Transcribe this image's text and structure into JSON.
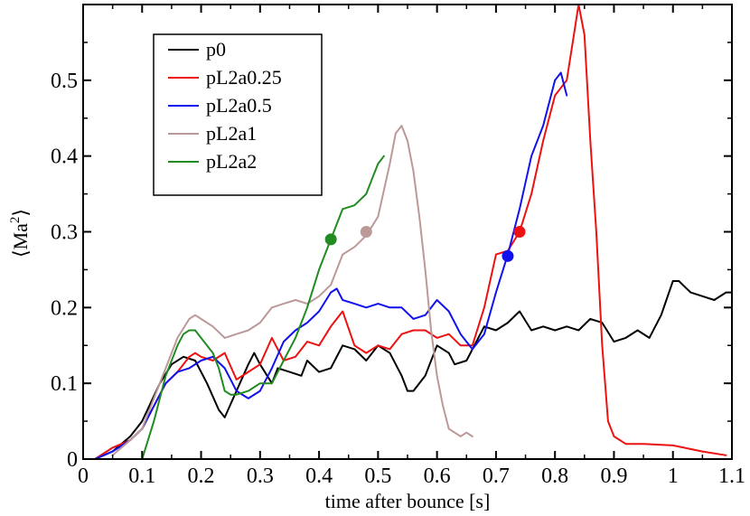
{
  "chart_data": {
    "type": "line",
    "title": "",
    "xlabel": "time after bounce [s]",
    "ylabel_main": "⟨Ma",
    "ylabel_sup": "2",
    "ylabel_close": "⟩",
    "xlim": [
      0,
      1.1
    ],
    "ylim": [
      0,
      0.6
    ],
    "grid": false,
    "legend_position": "top-left",
    "xticks": [
      0,
      0.1,
      0.2,
      0.3,
      0.4,
      0.5,
      0.6,
      0.7,
      0.8,
      0.9,
      1,
      1.1
    ],
    "xtick_labels": [
      "0",
      "0.1",
      "0.2",
      "0.3",
      "0.4",
      "0.5",
      "0.6",
      "0.7",
      "0.8",
      "0.9",
      "1",
      "1.1"
    ],
    "yticks": [
      0,
      0.1,
      0.2,
      0.3,
      0.4,
      0.5
    ],
    "ytick_labels": [
      "0",
      "0.1",
      "0.2",
      "0.3",
      "0.4",
      "0.5"
    ],
    "series": [
      {
        "name": "p0",
        "color": "#000000",
        "x": [
          0.02,
          0.05,
          0.08,
          0.1,
          0.13,
          0.15,
          0.17,
          0.19,
          0.21,
          0.23,
          0.24,
          0.26,
          0.28,
          0.29,
          0.3,
          0.32,
          0.33,
          0.35,
          0.37,
          0.38,
          0.4,
          0.42,
          0.44,
          0.46,
          0.48,
          0.5,
          0.52,
          0.54,
          0.55,
          0.56,
          0.58,
          0.6,
          0.62,
          0.63,
          0.65,
          0.68,
          0.7,
          0.72,
          0.74,
          0.76,
          0.78,
          0.8,
          0.82,
          0.84,
          0.86,
          0.88,
          0.9,
          0.92,
          0.94,
          0.96,
          0.98,
          1,
          1.01,
          1.03,
          1.05,
          1.07,
          1.09,
          1.1
        ],
        "y": [
          0,
          0.01,
          0.03,
          0.05,
          0.1,
          0.125,
          0.135,
          0.13,
          0.1,
          0.065,
          0.055,
          0.09,
          0.125,
          0.14,
          0.125,
          0.1,
          0.12,
          0.115,
          0.11,
          0.13,
          0.115,
          0.12,
          0.15,
          0.145,
          0.13,
          0.15,
          0.14,
          0.11,
          0.09,
          0.09,
          0.11,
          0.15,
          0.14,
          0.125,
          0.13,
          0.175,
          0.17,
          0.18,
          0.195,
          0.17,
          0.175,
          0.17,
          0.175,
          0.17,
          0.185,
          0.18,
          0.155,
          0.16,
          0.17,
          0.16,
          0.19,
          0.235,
          0.235,
          0.22,
          0.215,
          0.21,
          0.22,
          0.22
        ]
      },
      {
        "name": "pL2a0.25",
        "color": "#ee1111",
        "x": [
          0.02,
          0.05,
          0.08,
          0.1,
          0.12,
          0.14,
          0.16,
          0.18,
          0.19,
          0.2,
          0.22,
          0.24,
          0.26,
          0.28,
          0.3,
          0.32,
          0.34,
          0.36,
          0.38,
          0.4,
          0.42,
          0.44,
          0.46,
          0.48,
          0.5,
          0.52,
          0.54,
          0.56,
          0.58,
          0.6,
          0.62,
          0.64,
          0.66,
          0.68,
          0.7,
          0.72,
          0.74,
          0.76,
          0.78,
          0.8,
          0.82,
          0.83,
          0.84,
          0.85,
          0.86,
          0.87,
          0.88,
          0.89,
          0.9,
          0.92,
          0.95,
          1,
          1.05,
          1.09
        ],
        "y": [
          0,
          0.015,
          0.025,
          0.04,
          0.07,
          0.1,
          0.115,
          0.135,
          0.14,
          0.135,
          0.13,
          0.14,
          0.105,
          0.115,
          0.125,
          0.16,
          0.13,
          0.135,
          0.155,
          0.15,
          0.175,
          0.195,
          0.15,
          0.14,
          0.15,
          0.145,
          0.165,
          0.17,
          0.17,
          0.16,
          0.165,
          0.15,
          0.15,
          0.2,
          0.27,
          0.275,
          0.3,
          0.35,
          0.42,
          0.48,
          0.5,
          0.55,
          0.6,
          0.56,
          0.42,
          0.3,
          0.15,
          0.05,
          0.03,
          0.02,
          0.02,
          0.018,
          0.01,
          0.005
        ]
      },
      {
        "name": "pL2a0.5",
        "color": "#1111ee",
        "x": [
          0.02,
          0.05,
          0.08,
          0.1,
          0.12,
          0.14,
          0.16,
          0.18,
          0.2,
          0.22,
          0.24,
          0.26,
          0.28,
          0.3,
          0.32,
          0.34,
          0.36,
          0.38,
          0.4,
          0.42,
          0.43,
          0.44,
          0.46,
          0.48,
          0.5,
          0.52,
          0.54,
          0.56,
          0.58,
          0.6,
          0.62,
          0.64,
          0.66,
          0.68,
          0.7,
          0.72,
          0.74,
          0.76,
          0.78,
          0.8,
          0.81,
          0.82
        ],
        "y": [
          0,
          0.01,
          0.025,
          0.04,
          0.07,
          0.1,
          0.115,
          0.12,
          0.13,
          0.135,
          0.12,
          0.09,
          0.08,
          0.09,
          0.12,
          0.155,
          0.17,
          0.18,
          0.195,
          0.22,
          0.225,
          0.21,
          0.205,
          0.2,
          0.205,
          0.2,
          0.2,
          0.185,
          0.19,
          0.21,
          0.195,
          0.165,
          0.145,
          0.165,
          0.22,
          0.27,
          0.33,
          0.4,
          0.44,
          0.5,
          0.51,
          0.48
        ]
      },
      {
        "name": "pL2a1",
        "color": "#bb9999",
        "x": [
          0.05,
          0.08,
          0.1,
          0.12,
          0.14,
          0.16,
          0.18,
          0.19,
          0.2,
          0.22,
          0.24,
          0.26,
          0.28,
          0.3,
          0.32,
          0.34,
          0.36,
          0.38,
          0.4,
          0.42,
          0.44,
          0.46,
          0.48,
          0.5,
          0.52,
          0.53,
          0.54,
          0.55,
          0.56,
          0.57,
          0.58,
          0.59,
          0.6,
          0.61,
          0.62,
          0.63,
          0.64,
          0.65,
          0.66
        ],
        "y": [
          0.005,
          0.025,
          0.04,
          0.08,
          0.12,
          0.16,
          0.185,
          0.19,
          0.185,
          0.175,
          0.16,
          0.165,
          0.17,
          0.18,
          0.2,
          0.205,
          0.21,
          0.205,
          0.215,
          0.23,
          0.27,
          0.28,
          0.295,
          0.32,
          0.39,
          0.43,
          0.44,
          0.42,
          0.38,
          0.32,
          0.25,
          0.17,
          0.11,
          0.07,
          0.04,
          0.035,
          0.03,
          0.035,
          0.03
        ]
      },
      {
        "name": "pL2a2",
        "color": "#228b22",
        "x": [
          0.1,
          0.12,
          0.14,
          0.16,
          0.17,
          0.18,
          0.19,
          0.2,
          0.22,
          0.23,
          0.24,
          0.25,
          0.26,
          0.28,
          0.3,
          0.32,
          0.34,
          0.36,
          0.38,
          0.4,
          0.42,
          0.44,
          0.46,
          0.48,
          0.49,
          0.5,
          0.51
        ],
        "y": [
          0,
          0.05,
          0.11,
          0.15,
          0.165,
          0.17,
          0.17,
          0.16,
          0.14,
          0.12,
          0.09,
          0.085,
          0.085,
          0.09,
          0.1,
          0.1,
          0.13,
          0.16,
          0.2,
          0.25,
          0.29,
          0.33,
          0.335,
          0.35,
          0.37,
          0.39,
          0.4
        ]
      }
    ],
    "markers": [
      {
        "series": "pL2a2",
        "x": 0.42,
        "y": 0.29,
        "color": "#228b22"
      },
      {
        "series": "pL2a1",
        "x": 0.48,
        "y": 0.3,
        "color": "#bb9999"
      },
      {
        "series": "pL2a0.5",
        "x": 0.72,
        "y": 0.268,
        "color": "#1111ee"
      },
      {
        "series": "pL2a0.25",
        "x": 0.74,
        "y": 0.3,
        "color": "#ee1111"
      }
    ],
    "legend": [
      {
        "label": "p0",
        "color": "#000000"
      },
      {
        "label": "pL2a0.25",
        "color": "#ee1111"
      },
      {
        "label": "pL2a0.5",
        "color": "#1111ee"
      },
      {
        "label": "pL2a1",
        "color": "#bb9999"
      },
      {
        "label": "pL2a2",
        "color": "#228b22"
      }
    ]
  }
}
